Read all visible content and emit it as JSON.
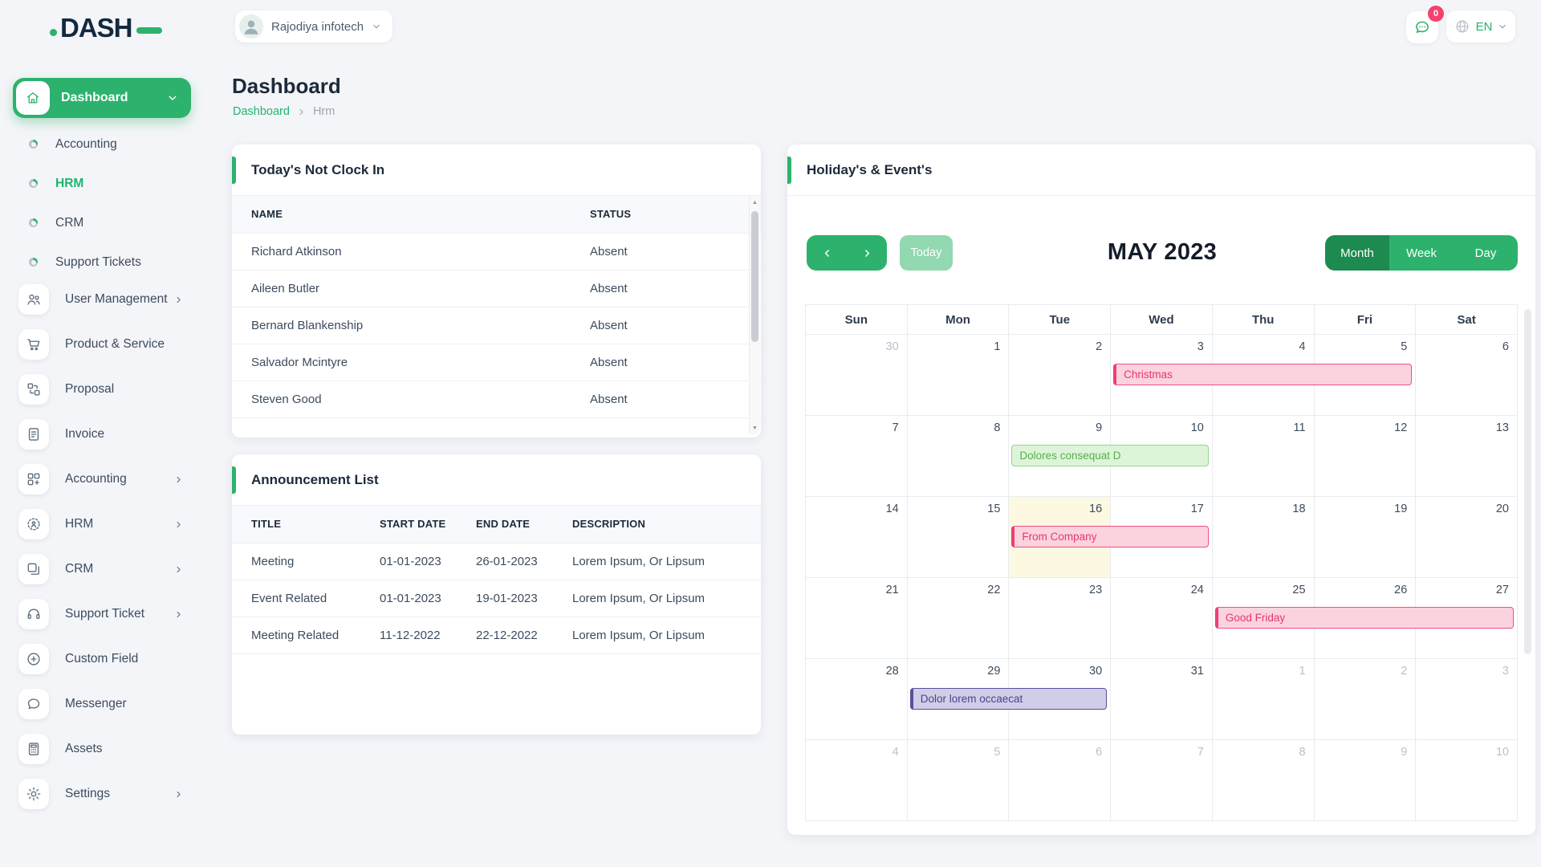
{
  "logo": {
    "text": "DASH"
  },
  "topbar": {
    "company": "Rajodiya infotech",
    "lang": "EN",
    "badge": "0"
  },
  "page": {
    "title": "Dashboard",
    "breadcrumb": [
      "Dashboard",
      "Hrm"
    ]
  },
  "sidebar": {
    "dashboard": {
      "label": "Dashboard"
    },
    "sub_items": [
      {
        "label": "Accounting",
        "active": false
      },
      {
        "label": "HRM",
        "active": true
      },
      {
        "label": "CRM",
        "active": false
      },
      {
        "label": "Support Tickets",
        "active": false
      }
    ],
    "items": [
      {
        "icon": "users-icon",
        "label": "User Management",
        "chevron": true
      },
      {
        "icon": "cart-icon",
        "label": "Product & Service",
        "chevron": false
      },
      {
        "icon": "workflow-icon",
        "label": "Proposal",
        "chevron": false
      },
      {
        "icon": "document-icon",
        "label": "Invoice",
        "chevron": false
      },
      {
        "icon": "grid-plus-icon",
        "label": "Accounting",
        "chevron": true
      },
      {
        "icon": "person-target-icon",
        "label": "HRM",
        "chevron": true
      },
      {
        "icon": "frames-icon",
        "label": "CRM",
        "chevron": true
      },
      {
        "icon": "headset-icon",
        "label": "Support Ticket",
        "chevron": true
      },
      {
        "icon": "plus-circle-icon",
        "label": "Custom Field",
        "chevron": false
      },
      {
        "icon": "chat-icon",
        "label": "Messenger",
        "chevron": false
      },
      {
        "icon": "calculator-icon",
        "label": "Assets",
        "chevron": false
      },
      {
        "icon": "gear-icon",
        "label": "Settings",
        "chevron": true
      }
    ]
  },
  "clockin": {
    "title": "Today's Not Clock In",
    "columns": [
      "NAME",
      "STATUS"
    ],
    "rows": [
      [
        "Richard Atkinson",
        "Absent"
      ],
      [
        "Aileen Butler",
        "Absent"
      ],
      [
        "Bernard Blankenship",
        "Absent"
      ],
      [
        "Salvador Mcintyre",
        "Absent"
      ],
      [
        "Steven Good",
        "Absent"
      ]
    ]
  },
  "announcements": {
    "title": "Announcement List",
    "columns": [
      "TITLE",
      "START DATE",
      "END DATE",
      "DESCRIPTION"
    ],
    "rows": [
      [
        "Meeting",
        "01-01-2023",
        "26-01-2023",
        "Lorem Ipsum, Or Lipsum"
      ],
      [
        "Event Related",
        "01-01-2023",
        "19-01-2023",
        "Lorem Ipsum, Or Lipsum"
      ],
      [
        "Meeting Related",
        "11-12-2022",
        "22-12-2022",
        "Lorem Ipsum, Or Lipsum"
      ]
    ]
  },
  "calendar": {
    "card_title": "Holiday's & Event's",
    "toolbar": {
      "today_label": "Today",
      "title": "MAY 2023",
      "views": [
        "Month",
        "Week",
        "Day"
      ],
      "active_view": "Month"
    },
    "day_headers": [
      "Sun",
      "Mon",
      "Tue",
      "Wed",
      "Thu",
      "Fri",
      "Sat"
    ],
    "weeks": [
      [
        {
          "d": 30,
          "muted": true
        },
        {
          "d": 1
        },
        {
          "d": 2
        },
        {
          "d": 3
        },
        {
          "d": 4
        },
        {
          "d": 5
        },
        {
          "d": 6
        }
      ],
      [
        {
          "d": 7
        },
        {
          "d": 8
        },
        {
          "d": 9
        },
        {
          "d": 10
        },
        {
          "d": 11
        },
        {
          "d": 12
        },
        {
          "d": 13
        }
      ],
      [
        {
          "d": 14
        },
        {
          "d": 15
        },
        {
          "d": 16,
          "today": true
        },
        {
          "d": 17
        },
        {
          "d": 18
        },
        {
          "d": 19
        },
        {
          "d": 20
        }
      ],
      [
        {
          "d": 21
        },
        {
          "d": 22
        },
        {
          "d": 23
        },
        {
          "d": 24
        },
        {
          "d": 25
        },
        {
          "d": 26
        },
        {
          "d": 27
        }
      ],
      [
        {
          "d": 28
        },
        {
          "d": 29
        },
        {
          "d": 30
        },
        {
          "d": 31
        },
        {
          "d": 1,
          "muted": true
        },
        {
          "d": 2,
          "muted": true
        },
        {
          "d": 3,
          "muted": true
        }
      ],
      [
        {
          "d": 4,
          "muted": true
        },
        {
          "d": 5,
          "muted": true
        },
        {
          "d": 6,
          "muted": true
        },
        {
          "d": 7,
          "muted": true
        },
        {
          "d": 8,
          "muted": true
        },
        {
          "d": 9,
          "muted": true
        },
        {
          "d": 10,
          "muted": true
        }
      ]
    ],
    "events": [
      {
        "label": "Christmas",
        "week": 0,
        "start": 3,
        "span": 3,
        "color": "pink"
      },
      {
        "label": "Dolores consequat D",
        "week": 1,
        "start": 2,
        "span": 2,
        "color": "green"
      },
      {
        "label": "From Company",
        "week": 2,
        "start": 2,
        "span": 2,
        "color": "pink"
      },
      {
        "label": "Good Friday",
        "week": 3,
        "start": 4,
        "span": 3,
        "color": "pink"
      },
      {
        "label": "Dolor lorem occaecat",
        "week": 4,
        "start": 1,
        "span": 2,
        "color": "purple"
      }
    ]
  },
  "theme": {
    "accent": "#2cb26c",
    "accent_dark": "#1d8a50",
    "accent_light": "#92d8b0",
    "pink_event": "#ef3d74",
    "green_event": "#8ed984",
    "purple_event": "#56509d",
    "today_cell": "#fcf8e1",
    "badge_red": "#f4426f"
  }
}
